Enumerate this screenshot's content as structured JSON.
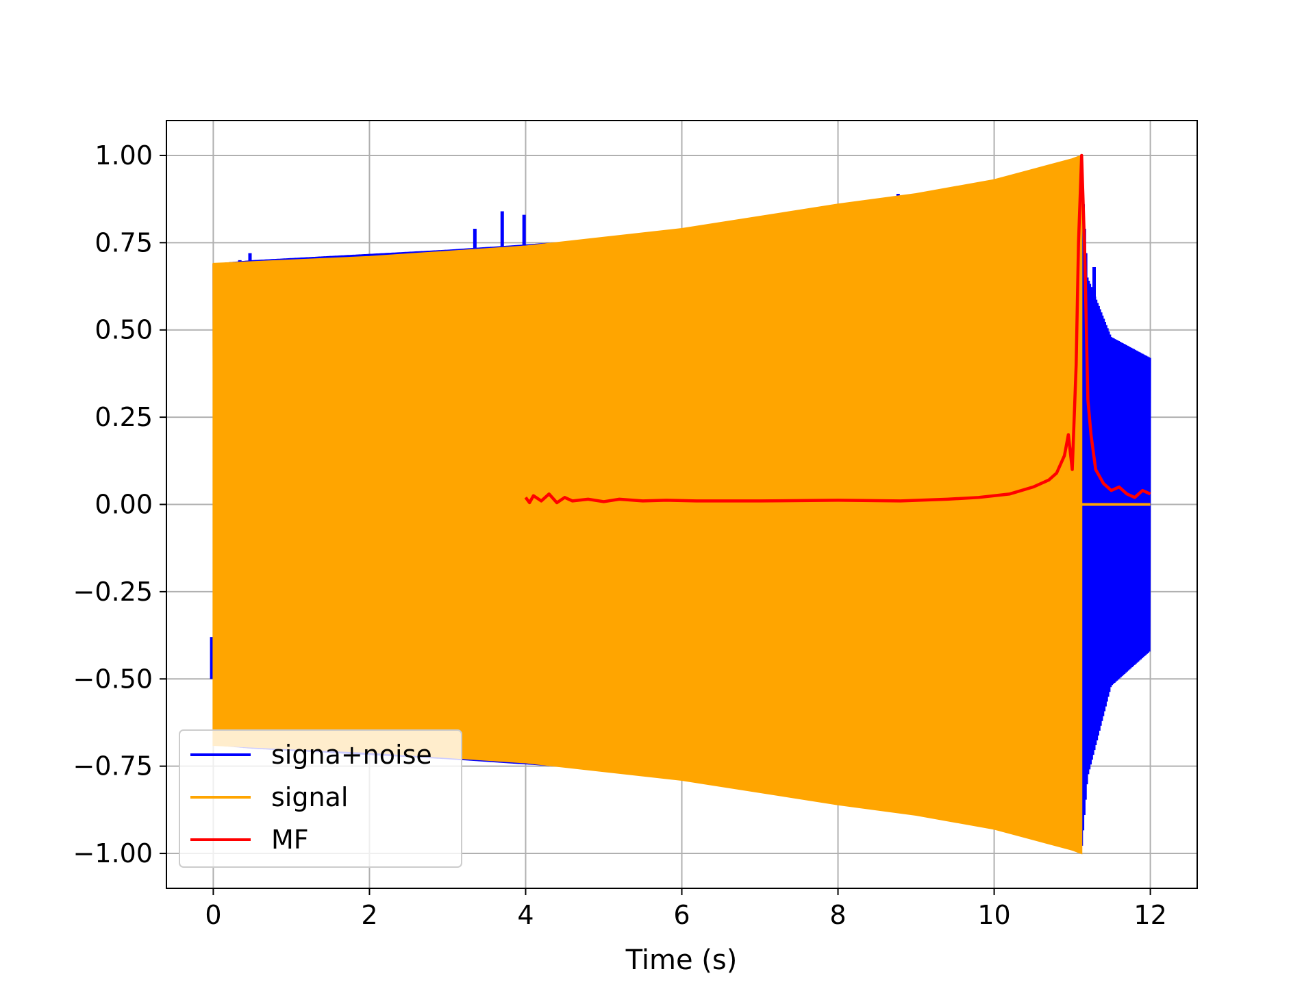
{
  "chart_data": {
    "type": "line",
    "title": "",
    "xlabel": "Time (s)",
    "ylabel": "",
    "xlim": [
      -0.6,
      12.6
    ],
    "ylim": [
      -1.1,
      1.1
    ],
    "xticks": [
      0,
      2,
      4,
      6,
      8,
      10,
      12
    ],
    "xtick_labels": [
      "0",
      "2",
      "4",
      "6",
      "8",
      "10",
      "12"
    ],
    "yticks": [
      1.0,
      0.75,
      0.5,
      0.25,
      0.0,
      -0.25,
      -0.5,
      -0.75,
      -1.0
    ],
    "ytick_labels": [
      "1.00",
      "0.75",
      "0.50",
      "0.25",
      "0.00",
      "−0.25",
      "−0.50",
      "−0.75",
      "−1.00"
    ],
    "grid": true,
    "legend_position": "lower-left",
    "series": [
      {
        "name": "signa+noise",
        "color": "#0000ff",
        "kind": "oscillation-band",
        "envelope": {
          "x": [
            0.0,
            0.5,
            3.0,
            5.0,
            8.0,
            10.0,
            11.12,
            11.2,
            11.5,
            12.0
          ],
          "upper": [
            0.69,
            0.7,
            0.73,
            0.76,
            0.83,
            0.92,
            1.0,
            0.65,
            0.48,
            0.42
          ],
          "lower": [
            -0.69,
            -0.7,
            -0.73,
            -0.76,
            -0.83,
            -0.92,
            -1.0,
            -0.78,
            -0.52,
            -0.42
          ]
        },
        "spikes": [
          {
            "x": 0.34,
            "y": 0.7
          },
          {
            "x": 0.47,
            "y": 0.72
          },
          {
            "x": 3.35,
            "y": 0.79
          },
          {
            "x": 3.7,
            "y": 0.84
          },
          {
            "x": 3.98,
            "y": 0.83
          },
          {
            "x": 8.77,
            "y": 0.89
          },
          {
            "x": 11.15,
            "y": -0.78
          },
          {
            "x": 11.28,
            "y": 0.68
          },
          {
            "x": -0.02,
            "y": -0.38
          }
        ]
      },
      {
        "name": "signal",
        "color": "#ffa500",
        "kind": "oscillation-band",
        "envelope": {
          "x": [
            0.0,
            2.0,
            4.0,
            6.0,
            8.0,
            9.0,
            10.0,
            10.5,
            11.0,
            11.12
          ],
          "upper": [
            0.69,
            0.71,
            0.74,
            0.79,
            0.86,
            0.89,
            0.93,
            0.96,
            0.99,
            1.0
          ],
          "lower": [
            -0.69,
            -0.71,
            -0.74,
            -0.79,
            -0.86,
            -0.89,
            -0.93,
            -0.96,
            -0.99,
            -1.0
          ]
        },
        "tail": {
          "x": [
            11.12,
            12.0
          ],
          "y": [
            0.0,
            0.0
          ]
        }
      },
      {
        "name": "MF",
        "color": "#ff0000",
        "kind": "line",
        "x": [
          4.0,
          4.05,
          4.1,
          4.2,
          4.3,
          4.4,
          4.5,
          4.6,
          4.8,
          5.0,
          5.2,
          5.5,
          5.8,
          6.2,
          7.0,
          8.0,
          8.8,
          9.4,
          9.8,
          10.2,
          10.5,
          10.7,
          10.8,
          10.9,
          10.95,
          11.0,
          11.05,
          11.08,
          11.12,
          11.16,
          11.2,
          11.24,
          11.3,
          11.4,
          11.5,
          11.6,
          11.7,
          11.8,
          11.9,
          12.0
        ],
        "y": [
          0.02,
          0.005,
          0.025,
          0.01,
          0.03,
          0.005,
          0.02,
          0.01,
          0.015,
          0.008,
          0.015,
          0.01,
          0.012,
          0.01,
          0.01,
          0.012,
          0.01,
          0.015,
          0.02,
          0.03,
          0.05,
          0.07,
          0.09,
          0.14,
          0.2,
          0.1,
          0.4,
          0.75,
          1.0,
          0.72,
          0.3,
          0.2,
          0.1,
          0.06,
          0.04,
          0.05,
          0.03,
          0.02,
          0.04,
          0.03
        ]
      }
    ]
  }
}
